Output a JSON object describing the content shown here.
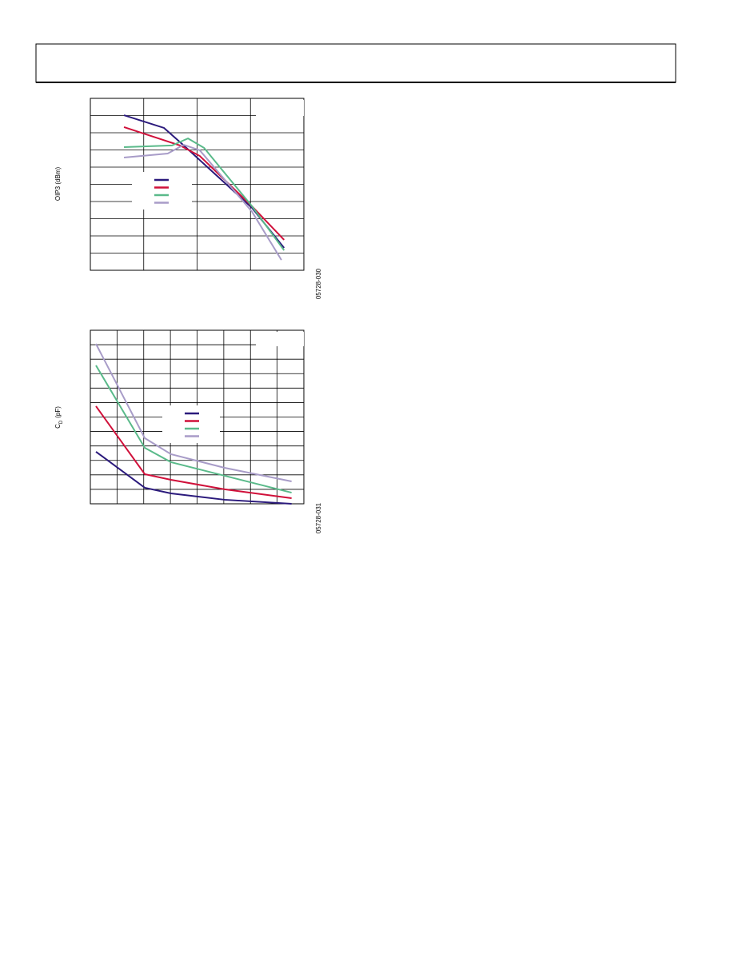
{
  "chart_data": [
    {
      "type": "line",
      "ylabel": "OIP3 (dBm)",
      "figure_id": "05728-030",
      "xlim": [
        0,
        4
      ],
      "ylim": [
        0,
        10
      ],
      "series": [
        {
          "color": "#2b1a7c",
          "x": [
            0.63,
            1.38,
            1.75,
            3.03,
            3.63
          ],
          "values": [
            9.02,
            8.28,
            7.26,
            3.63,
            1.3
          ]
        },
        {
          "color": "#d0103a",
          "x": [
            0.63,
            1.68,
            2.05,
            3.03,
            3.63
          ],
          "values": [
            8.33,
            7.26,
            6.65,
            3.72,
            1.77
          ]
        },
        {
          "color": "#5aba8a",
          "x": [
            0.63,
            1.53,
            1.83,
            2.13,
            3.03,
            3.63
          ],
          "values": [
            7.16,
            7.26,
            7.67,
            7.12,
            3.72,
            1.16
          ]
        },
        {
          "color": "#a89cc8",
          "x": [
            0.63,
            1.45,
            1.75,
            2.05,
            3.03,
            3.58
          ],
          "values": [
            6.56,
            6.79,
            7.3,
            6.98,
            3.4,
            0.6
          ]
        }
      ]
    },
    {
      "type": "line",
      "ylabel": [
        "C",
        "D",
        "(pF)"
      ],
      "figure_id": "05728-031",
      "xlim": [
        0,
        8
      ],
      "ylim": [
        0,
        12
      ],
      "series": [
        {
          "color": "#2b1a7c",
          "x": [
            0.21,
            2.04,
            3.02,
            5.03,
            7.54
          ],
          "values": [
            3.6,
            1.11,
            0.72,
            0.28,
            0
          ]
        },
        {
          "color": "#d0103a",
          "x": [
            0.21,
            2.04,
            3.02,
            5.03,
            7.54
          ],
          "values": [
            6.75,
            2.05,
            1.66,
            1.0,
            0.39
          ]
        },
        {
          "color": "#5aba8a",
          "x": [
            0.21,
            2.04,
            3.02,
            5.03,
            7.54
          ],
          "values": [
            9.57,
            3.87,
            2.88,
            1.94,
            0.77
          ]
        },
        {
          "color": "#a89cc8",
          "x": [
            0.21,
            2.04,
            3.02,
            5.03,
            7.54
          ],
          "values": [
            11.06,
            4.54,
            3.43,
            2.49,
            1.55
          ]
        }
      ]
    }
  ]
}
